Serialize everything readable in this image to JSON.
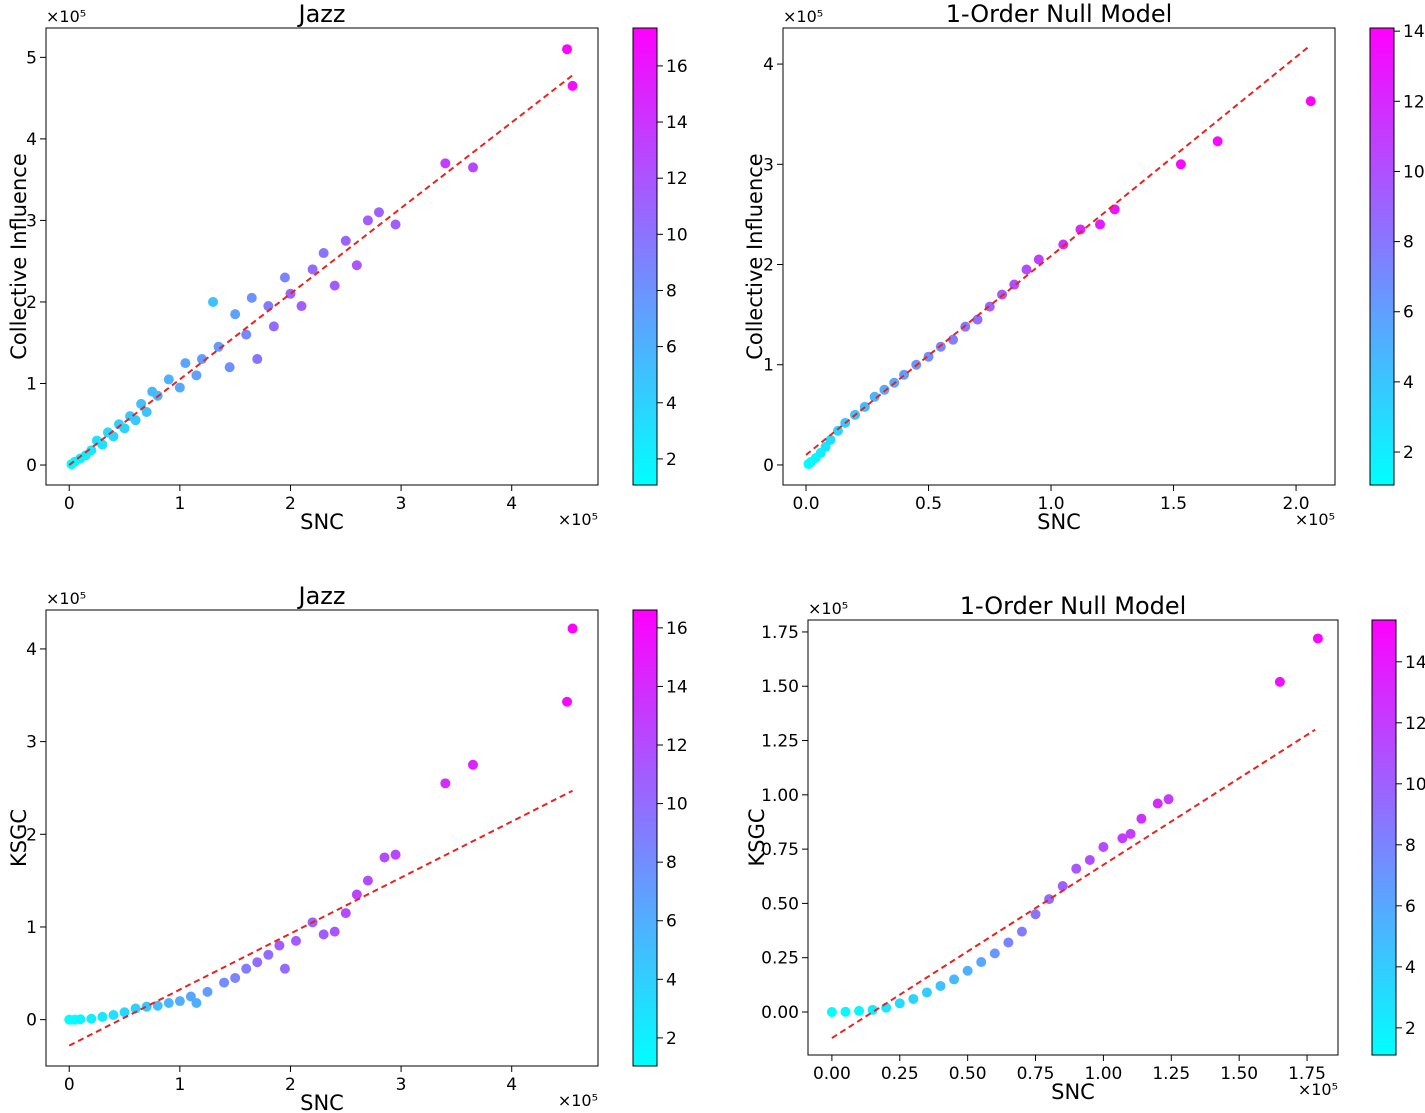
{
  "chart_data": [
    {
      "type": "scatter",
      "title": "Jazz",
      "xlabel": "SNC",
      "ylabel": "Collective Influence",
      "x_offset": "×10⁵",
      "y_offset": "×10⁵",
      "colormap": "cool",
      "x": [
        0.02,
        0.05,
        0.1,
        0.15,
        0.2,
        0.25,
        0.3,
        0.35,
        0.4,
        0.45,
        0.5,
        0.55,
        0.6,
        0.65,
        0.7,
        0.75,
        0.8,
        0.9,
        1.0,
        1.05,
        1.15,
        1.2,
        1.3,
        1.35,
        1.45,
        1.5,
        1.6,
        1.65,
        1.7,
        1.8,
        1.85,
        1.95,
        2.0,
        2.1,
        2.2,
        2.3,
        2.4,
        2.5,
        2.6,
        2.7,
        2.8,
        2.95,
        3.4,
        3.65,
        4.5,
        4.55
      ],
      "values": [
        0.01,
        0.04,
        0.08,
        0.12,
        0.18,
        0.3,
        0.25,
        0.4,
        0.35,
        0.5,
        0.45,
        0.6,
        0.55,
        0.75,
        0.65,
        0.9,
        0.85,
        1.05,
        0.95,
        1.25,
        1.1,
        1.3,
        2.0,
        1.45,
        1.2,
        1.85,
        1.6,
        2.05,
        1.3,
        1.95,
        1.7,
        2.3,
        2.1,
        1.95,
        2.4,
        2.6,
        2.2,
        2.75,
        2.45,
        3.0,
        3.1,
        2.95,
        3.7,
        3.65,
        5.1,
        4.65
      ],
      "color_values": [
        1.2,
        1.5,
        2,
        2.3,
        2.6,
        3,
        3,
        3.5,
        3.6,
        4,
        4,
        4.5,
        4.6,
        5,
        5,
        5.5,
        5.6,
        6,
        6.5,
        6.8,
        7,
        7.2,
        5,
        7.5,
        8,
        7,
        8.5,
        8,
        10,
        9.5,
        10.5,
        9,
        11,
        11.5,
        10.5,
        10,
        11.5,
        11,
        12,
        11.5,
        11,
        11.5,
        13.5,
        13,
        17,
        16.5
      ],
      "fit_line": {
        "x": [
          0,
          4.55
        ],
        "y": [
          0,
          4.78
        ],
        "color": "#e8231f"
      },
      "xlim": [
        -0.21,
        4.78
      ],
      "ylim": [
        -0.245,
        5.36
      ],
      "xticks": [
        0,
        1,
        2,
        3,
        4
      ],
      "yticks": [
        0,
        1,
        2,
        3,
        4,
        5
      ],
      "clim": [
        1.07,
        17.35
      ],
      "cticks": [
        2,
        4,
        6,
        8,
        10,
        12,
        14,
        16
      ]
    },
    {
      "type": "scatter",
      "title": "1-Order Null Model",
      "xlabel": "SNC",
      "ylabel": "Collective Influence",
      "x_offset": "×10⁵",
      "y_offset": "×10⁵",
      "colormap": "cool",
      "x": [
        0.01,
        0.02,
        0.04,
        0.06,
        0.08,
        0.1,
        0.13,
        0.16,
        0.2,
        0.24,
        0.28,
        0.32,
        0.36,
        0.4,
        0.45,
        0.5,
        0.55,
        0.6,
        0.65,
        0.7,
        0.75,
        0.8,
        0.85,
        0.9,
        0.95,
        1.05,
        1.12,
        1.2,
        1.26,
        1.53,
        1.68,
        2.06
      ],
      "values": [
        0.01,
        0.03,
        0.07,
        0.12,
        0.18,
        0.25,
        0.34,
        0.42,
        0.5,
        0.58,
        0.68,
        0.75,
        0.82,
        0.9,
        1.0,
        1.08,
        1.18,
        1.25,
        1.38,
        1.45,
        1.58,
        1.7,
        1.8,
        1.95,
        2.05,
        2.2,
        2.35,
        2.4,
        2.55,
        3.0,
        3.23,
        3.63
      ],
      "color_values": [
        1.1,
        1.3,
        1.6,
        2,
        2.4,
        2.8,
        3.2,
        3.6,
        4,
        4.4,
        4.8,
        5.2,
        5.6,
        6,
        6.4,
        6.8,
        7.2,
        7.6,
        8,
        8.5,
        9,
        9.5,
        10,
        10.3,
        10.8,
        11.5,
        12,
        12.5,
        13,
        13.5,
        13.5,
        14
      ],
      "fit_line": {
        "x": [
          0,
          2.05
        ],
        "y": [
          0.1,
          4.17
        ],
        "color": "#e8231f"
      },
      "xlim": [
        -0.094,
        2.159
      ],
      "ylim": [
        -0.2,
        4.36
      ],
      "xticks": [
        {
          "value": 0,
          "label": "0.0"
        },
        {
          "value": 0.5,
          "label": "0.5"
        },
        {
          "value": 1,
          "label": "1.0"
        },
        {
          "value": 1.5,
          "label": "1.5"
        },
        {
          "value": 2,
          "label": "2.0"
        }
      ],
      "yticks": [
        0,
        1,
        2,
        3,
        4
      ],
      "clim": [
        1.06,
        14.09
      ],
      "cticks": [
        2,
        4,
        6,
        8,
        10,
        12,
        14
      ]
    },
    {
      "type": "scatter",
      "title": "Jazz",
      "xlabel": "SNC",
      "ylabel": "KSGC",
      "x_offset": "×10⁵",
      "y_offset": "×10⁵",
      "colormap": "cool",
      "x": [
        0,
        0.05,
        0.1,
        0.2,
        0.3,
        0.4,
        0.5,
        0.6,
        0.7,
        0.8,
        0.9,
        1.0,
        1.1,
        1.15,
        1.25,
        1.4,
        1.5,
        1.6,
        1.7,
        1.8,
        1.9,
        1.95,
        2.05,
        2.2,
        2.3,
        2.4,
        2.5,
        2.6,
        2.7,
        2.85,
        2.95,
        3.4,
        3.65,
        4.5,
        4.55
      ],
      "values": [
        0,
        0,
        0.005,
        0.01,
        0.03,
        0.05,
        0.08,
        0.12,
        0.14,
        0.15,
        0.18,
        0.2,
        0.25,
        0.18,
        0.3,
        0.4,
        0.45,
        0.55,
        0.62,
        0.7,
        0.8,
        0.55,
        0.85,
        1.05,
        0.92,
        0.95,
        1.15,
        1.35,
        1.5,
        1.75,
        1.78,
        2.55,
        2.75,
        3.43,
        4.22
      ],
      "color_values": [
        1.1,
        1.3,
        1.5,
        2,
        2.5,
        3,
        3.5,
        4,
        4.5,
        5,
        5.5,
        6,
        6.5,
        6,
        7,
        8,
        8.5,
        9,
        10,
        10,
        11,
        10,
        11,
        10.5,
        11,
        11.5,
        12,
        12.5,
        12,
        12,
        12.5,
        14,
        14.5,
        16,
        16.5
      ],
      "fit_line": {
        "x": [
          0,
          4.55
        ],
        "y": [
          -0.28,
          2.47
        ],
        "color": "#e8231f"
      },
      "xlim": [
        -0.21,
        4.78
      ],
      "ylim": [
        -0.5,
        4.42
      ],
      "xticks": [
        0,
        1,
        2,
        3,
        4
      ],
      "yticks": [
        0,
        1,
        2,
        3,
        4
      ],
      "clim": [
        1.04,
        16.61
      ],
      "cticks": [
        2,
        4,
        6,
        8,
        10,
        12,
        14,
        16
      ]
    },
    {
      "type": "scatter",
      "title": "1-Order Null Model",
      "xlabel": "SNC",
      "ylabel": "KSGC",
      "x_offset": "×10⁵",
      "y_offset": "×10⁵",
      "colormap": "cool",
      "x": [
        0,
        0.05,
        0.1,
        0.15,
        0.2,
        0.25,
        0.3,
        0.35,
        0.4,
        0.45,
        0.5,
        0.55,
        0.6,
        0.65,
        0.7,
        0.75,
        0.8,
        0.85,
        0.9,
        0.95,
        1.0,
        1.07,
        1.1,
        1.14,
        1.2,
        1.24,
        1.65,
        1.79
      ],
      "values": [
        0,
        0.001,
        0.005,
        0.01,
        0.02,
        0.04,
        0.06,
        0.09,
        0.12,
        0.15,
        0.19,
        0.23,
        0.27,
        0.32,
        0.37,
        0.45,
        0.52,
        0.58,
        0.66,
        0.7,
        0.76,
        0.8,
        0.82,
        0.89,
        0.96,
        0.98,
        1.52,
        1.72
      ],
      "color_values": [
        1.2,
        1.4,
        1.7,
        2,
        2.5,
        3,
        3.5,
        4,
        4.5,
        5,
        5.5,
        6,
        7,
        8,
        8.5,
        9,
        9.5,
        10,
        10.5,
        11,
        11,
        12,
        12,
        12.5,
        13,
        12,
        14.5,
        15
      ],
      "fit_line": {
        "x": [
          0,
          1.78
        ],
        "y": [
          -0.12,
          1.3
        ],
        "color": "#e8231f"
      },
      "xlim": [
        -0.088,
        1.864
      ],
      "ylim": [
        -0.198,
        1.805
      ],
      "xticks": [
        {
          "value": 0,
          "label": "0.00"
        },
        {
          "value": 0.25,
          "label": "0.25"
        },
        {
          "value": 0.5,
          "label": "0.50"
        },
        {
          "value": 0.75,
          "label": "0.75"
        },
        {
          "value": 1,
          "label": "1.00"
        },
        {
          "value": 1.25,
          "label": "1.25"
        },
        {
          "value": 1.5,
          "label": "1.50"
        },
        {
          "value": 1.75,
          "label": "1.75"
        }
      ],
      "yticks": [
        {
          "value": 0,
          "label": "0.00"
        },
        {
          "value": 0.25,
          "label": "0.25"
        },
        {
          "value": 0.5,
          "label": "0.50"
        },
        {
          "value": 0.75,
          "label": "0.75"
        },
        {
          "value": 1,
          "label": "1.00"
        },
        {
          "value": 1.25,
          "label": "1.25"
        },
        {
          "value": 1.5,
          "label": "1.50"
        },
        {
          "value": 1.75,
          "label": "1.75"
        }
      ],
      "clim": [
        1.11,
        15.37
      ],
      "cticks": [
        2,
        4,
        6,
        8,
        10,
        12,
        14
      ]
    }
  ]
}
